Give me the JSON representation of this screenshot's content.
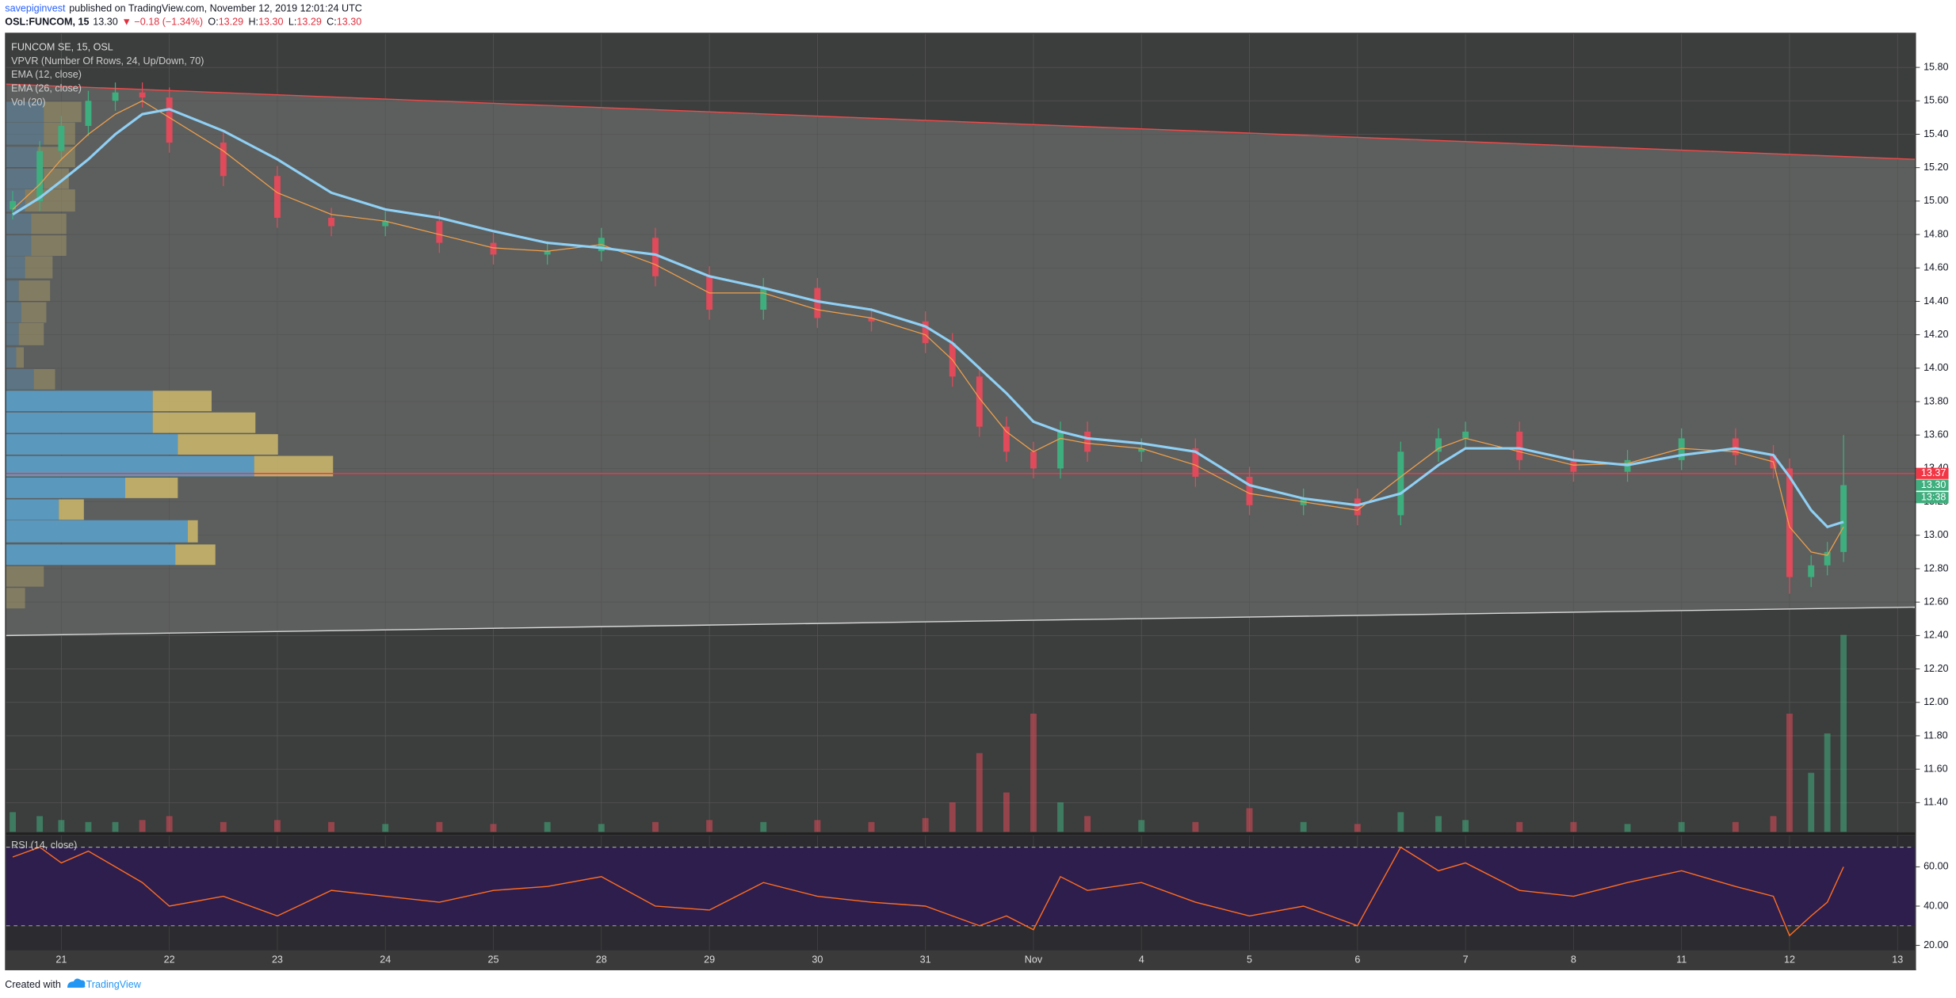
{
  "header": {
    "author": "savepiginvest",
    "published": "published on TradingView.com, November 12, 2019 12:01:24 UTC",
    "quote": [
      {
        "text": "OSL:FUNCOM, 15",
        "color": "#131722"
      },
      {
        "text": "13.30",
        "color": "#131722"
      },
      {
        "text": "▼ −0.18 (−1.34%)",
        "color": "#e0303e"
      },
      {
        "text": "O:",
        "color": "#131722"
      },
      {
        "text": "13.29",
        "color": "#e0303e"
      },
      {
        "text": "H:",
        "color": "#131722"
      },
      {
        "text": "13.30",
        "color": "#e0303e"
      },
      {
        "text": "L:",
        "color": "#131722"
      },
      {
        "text": "13.29",
        "color": "#e0303e"
      },
      {
        "text": "C:",
        "color": "#131722"
      },
      {
        "text": "13.30",
        "color": "#e0303e"
      }
    ]
  },
  "footer": {
    "text": "Created with",
    "brand": "TradingView"
  },
  "chart_data": {
    "type": "candlestick",
    "title": "FUNCOM SE, 15, OSL",
    "x": [
      -0.45,
      -0.2,
      0,
      0.25,
      0.5,
      0.75,
      1,
      1.5,
      2,
      2.5,
      3,
      3.5,
      4,
      4.5,
      5,
      5.5,
      6,
      6.5,
      7,
      7.5,
      8,
      8.25,
      8.5,
      8.75,
      9,
      9.25,
      9.5,
      10,
      10.5,
      11,
      11.5,
      12,
      12.4,
      12.75,
      13,
      13.5,
      14,
      14.5,
      15,
      15.5,
      15.85,
      16,
      16.2,
      16.35,
      16.5
    ],
    "open": [
      14.95,
      15.0,
      15.3,
      15.45,
      15.6,
      15.65,
      15.62,
      15.35,
      15.15,
      14.9,
      14.85,
      14.88,
      14.75,
      14.68,
      14.7,
      14.78,
      14.55,
      14.35,
      14.48,
      14.3,
      14.28,
      14.15,
      13.95,
      13.65,
      13.5,
      13.4,
      13.62,
      13.5,
      13.52,
      13.35,
      13.18,
      13.22,
      13.12,
      13.5,
      13.58,
      13.62,
      13.45,
      13.38,
      13.45,
      13.58,
      13.48,
      13.4,
      12.75,
      12.82,
      12.9
    ],
    "high": [
      15.06,
      15.36,
      15.51,
      15.66,
      15.71,
      15.71,
      15.68,
      15.41,
      15.21,
      14.96,
      14.94,
      14.94,
      14.81,
      14.76,
      14.84,
      14.84,
      14.61,
      14.54,
      14.54,
      14.36,
      14.34,
      14.21,
      14.01,
      13.71,
      13.56,
      13.68,
      13.68,
      13.58,
      13.58,
      13.41,
      13.28,
      13.28,
      13.56,
      13.64,
      13.68,
      13.68,
      13.51,
      13.51,
      13.64,
      13.64,
      13.54,
      13.46,
      12.88,
      12.96,
      13.6
    ],
    "low": [
      14.89,
      14.94,
      15.24,
      15.39,
      15.54,
      15.56,
      15.29,
      15.09,
      14.84,
      14.79,
      14.79,
      14.69,
      14.62,
      14.62,
      14.64,
      14.49,
      14.29,
      14.29,
      14.24,
      14.22,
      14.09,
      13.89,
      13.59,
      13.44,
      13.34,
      13.34,
      13.44,
      13.44,
      13.29,
      13.12,
      13.12,
      13.06,
      13.06,
      13.44,
      13.52,
      13.39,
      13.32,
      13.32,
      13.39,
      13.42,
      13.34,
      12.65,
      12.69,
      12.76,
      12.84
    ],
    "close": [
      15.0,
      15.3,
      15.45,
      15.6,
      15.65,
      15.62,
      15.35,
      15.15,
      14.9,
      14.85,
      14.88,
      14.75,
      14.68,
      14.7,
      14.78,
      14.55,
      14.35,
      14.48,
      14.3,
      14.28,
      14.15,
      13.95,
      13.65,
      13.5,
      13.4,
      13.62,
      13.5,
      13.52,
      13.35,
      13.18,
      13.22,
      13.12,
      13.5,
      13.58,
      13.62,
      13.45,
      13.38,
      13.45,
      13.58,
      13.48,
      13.4,
      12.75,
      12.82,
      12.9,
      13.3
    ],
    "up_color": "#3fae7e",
    "down_color": "#e04a5a",
    "series": [
      {
        "name": "EMA (12, close)",
        "color": "#f0a04b",
        "width": 0.8,
        "values": [
          14.95,
          15.1,
          15.25,
          15.4,
          15.52,
          15.6,
          15.5,
          15.3,
          15.05,
          14.92,
          14.88,
          14.8,
          14.72,
          14.7,
          14.74,
          14.62,
          14.45,
          14.45,
          14.35,
          14.3,
          14.2,
          14.05,
          13.82,
          13.62,
          13.5,
          13.58,
          13.55,
          13.52,
          13.42,
          13.25,
          13.2,
          13.15,
          13.35,
          13.52,
          13.58,
          13.5,
          13.42,
          13.43,
          13.52,
          13.5,
          13.44,
          13.05,
          12.9,
          12.88,
          13.05
        ]
      },
      {
        "name": "EMA (26, close)",
        "color": "#8fd0f5",
        "width": 2,
        "values": [
          14.92,
          15.02,
          15.12,
          15.25,
          15.4,
          15.52,
          15.55,
          15.42,
          15.25,
          15.05,
          14.95,
          14.9,
          14.82,
          14.75,
          14.72,
          14.68,
          14.55,
          14.48,
          14.4,
          14.35,
          14.25,
          14.15,
          14.0,
          13.85,
          13.68,
          13.62,
          13.58,
          13.55,
          13.5,
          13.3,
          13.22,
          13.18,
          13.25,
          13.42,
          13.52,
          13.52,
          13.45,
          13.42,
          13.48,
          13.52,
          13.48,
          13.35,
          13.15,
          13.05,
          13.08
        ]
      }
    ],
    "volume": {
      "name": "Vol (20)",
      "values": [
        10,
        8,
        6,
        5,
        5,
        6,
        8,
        5,
        6,
        5,
        4,
        5,
        4,
        5,
        4,
        5,
        6,
        5,
        6,
        5,
        7,
        15,
        40,
        20,
        60,
        15,
        8,
        6,
        5,
        12,
        5,
        4,
        10,
        8,
        6,
        5,
        5,
        4,
        5,
        5,
        8,
        60,
        30,
        50,
        100
      ]
    },
    "vpvr": {
      "name": "VPVR (Number Of Rows, 24, Up/Down, 70)",
      "up_color": "#5b9ec9",
      "down_color": "#c8b46a",
      "value_area": [
        12.82,
        13.87
      ],
      "rows": [
        {
          "price": 12.62,
          "up": 0,
          "down": 15
        },
        {
          "price": 12.75,
          "up": 0,
          "down": 30
        },
        {
          "price": 12.88,
          "up": 135,
          "down": 32
        },
        {
          "price": 13.02,
          "up": 145,
          "down": 8
        },
        {
          "price": 13.15,
          "up": 42,
          "down": 20
        },
        {
          "price": 13.28,
          "up": 95,
          "down": 42
        },
        {
          "price": 13.41,
          "up": 198,
          "down": 63
        },
        {
          "price": 13.54,
          "up": 137,
          "down": 80
        },
        {
          "price": 13.67,
          "up": 117,
          "down": 82
        },
        {
          "price": 13.8,
          "up": 117,
          "down": 47
        },
        {
          "price": 13.93,
          "up": 22,
          "down": 17
        },
        {
          "price": 14.06,
          "up": 8,
          "down": 6
        },
        {
          "price": 14.2,
          "up": 10,
          "down": 20
        },
        {
          "price": 14.33,
          "up": 12,
          "down": 20
        },
        {
          "price": 14.46,
          "up": 10,
          "down": 25
        },
        {
          "price": 14.6,
          "up": 15,
          "down": 22
        },
        {
          "price": 14.73,
          "up": 20,
          "down": 28
        },
        {
          "price": 14.86,
          "up": 20,
          "down": 28
        },
        {
          "price": 15.0,
          "up": 15,
          "down": 40
        },
        {
          "price": 15.13,
          "up": 30,
          "down": 20
        },
        {
          "price": 15.26,
          "up": 25,
          "down": 30
        },
        {
          "price": 15.4,
          "up": 30,
          "down": 25
        },
        {
          "price": 15.53,
          "up": 30,
          "down": 30
        }
      ]
    },
    "channel": {
      "upper": [
        15.7,
        15.25
      ],
      "lower": [
        12.4,
        12.57
      ],
      "upper_color": "#f04a4a",
      "lower_color": "#d8d8d8"
    },
    "hline": {
      "value": 13.37,
      "color": "#f23645"
    },
    "price_labels": [
      {
        "value": 13.37,
        "label": "13.37",
        "color": "#f23645"
      },
      {
        "value": 13.3,
        "label": "13.30",
        "color": "#3fae7e"
      }
    ],
    "countdown": "13:38",
    "xlim": [
      -0.51,
      17.16
    ],
    "xticks": [
      {
        "value": 0,
        "label": "21"
      },
      {
        "value": 1,
        "label": "22"
      },
      {
        "value": 2,
        "label": "23"
      },
      {
        "value": 3,
        "label": "24"
      },
      {
        "value": 4,
        "label": "25"
      },
      {
        "value": 5,
        "label": "28"
      },
      {
        "value": 6,
        "label": "29"
      },
      {
        "value": 7,
        "label": "30"
      },
      {
        "value": 8,
        "label": "31"
      },
      {
        "value": 9,
        "label": "Nov"
      },
      {
        "value": 10,
        "label": "4"
      },
      {
        "value": 11,
        "label": "5"
      },
      {
        "value": 12,
        "label": "6"
      },
      {
        "value": 13,
        "label": "7"
      },
      {
        "value": 14,
        "label": "8"
      },
      {
        "value": 15,
        "label": "11"
      },
      {
        "value": 16,
        "label": "12"
      },
      {
        "value": 17,
        "label": "13"
      }
    ],
    "ylim": [
      11.225,
      16.0
    ],
    "yticks": [
      {
        "value": 11.4,
        "label": "11.40"
      },
      {
        "value": 11.6,
        "label": "11.60"
      },
      {
        "value": 11.8,
        "label": "11.80"
      },
      {
        "value": 12,
        "label": "12.00"
      },
      {
        "value": 12.2,
        "label": "12.20"
      },
      {
        "value": 12.4,
        "label": "12.40"
      },
      {
        "value": 12.6,
        "label": "12.60"
      },
      {
        "value": 12.8,
        "label": "12.80"
      },
      {
        "value": 13,
        "label": "13.00"
      },
      {
        "value": 13.2,
        "label": "13.20"
      },
      {
        "value": 13.4,
        "label": "13.40"
      },
      {
        "value": 13.6,
        "label": "13.60"
      },
      {
        "value": 13.8,
        "label": "13.80"
      },
      {
        "value": 14,
        "label": "14.00"
      },
      {
        "value": 14.2,
        "label": "14.20"
      },
      {
        "value": 14.4,
        "label": "14.40"
      },
      {
        "value": 14.6,
        "label": "14.60"
      },
      {
        "value": 14.8,
        "label": "14.80"
      },
      {
        "value": 15,
        "label": "15.00"
      },
      {
        "value": 15.2,
        "label": "15.20"
      },
      {
        "value": 15.4,
        "label": "15.40"
      },
      {
        "value": 15.6,
        "label": "15.60"
      },
      {
        "value": 15.8,
        "label": "15.80"
      }
    ],
    "grid": true,
    "rsi": {
      "name": "RSI (14, close)",
      "color": "#ff6d1f",
      "band_color": "#2e1e4e",
      "levels": [
        70,
        30
      ],
      "values": [
        65,
        70,
        62,
        68,
        60,
        52,
        40,
        45,
        35,
        48,
        45,
        42,
        48,
        50,
        55,
        40,
        38,
        52,
        45,
        42,
        40,
        35,
        30,
        35,
        28,
        55,
        48,
        52,
        42,
        35,
        40,
        30,
        70,
        58,
        62,
        48,
        45,
        52,
        58,
        50,
        45,
        25,
        35,
        42,
        60
      ],
      "ylim": [
        17.5,
        75.9
      ],
      "yticks": [
        {
          "value": 20,
          "label": "20.00"
        },
        {
          "value": 40,
          "label": "40.00"
        },
        {
          "value": 60,
          "label": "60.00"
        }
      ]
    }
  }
}
